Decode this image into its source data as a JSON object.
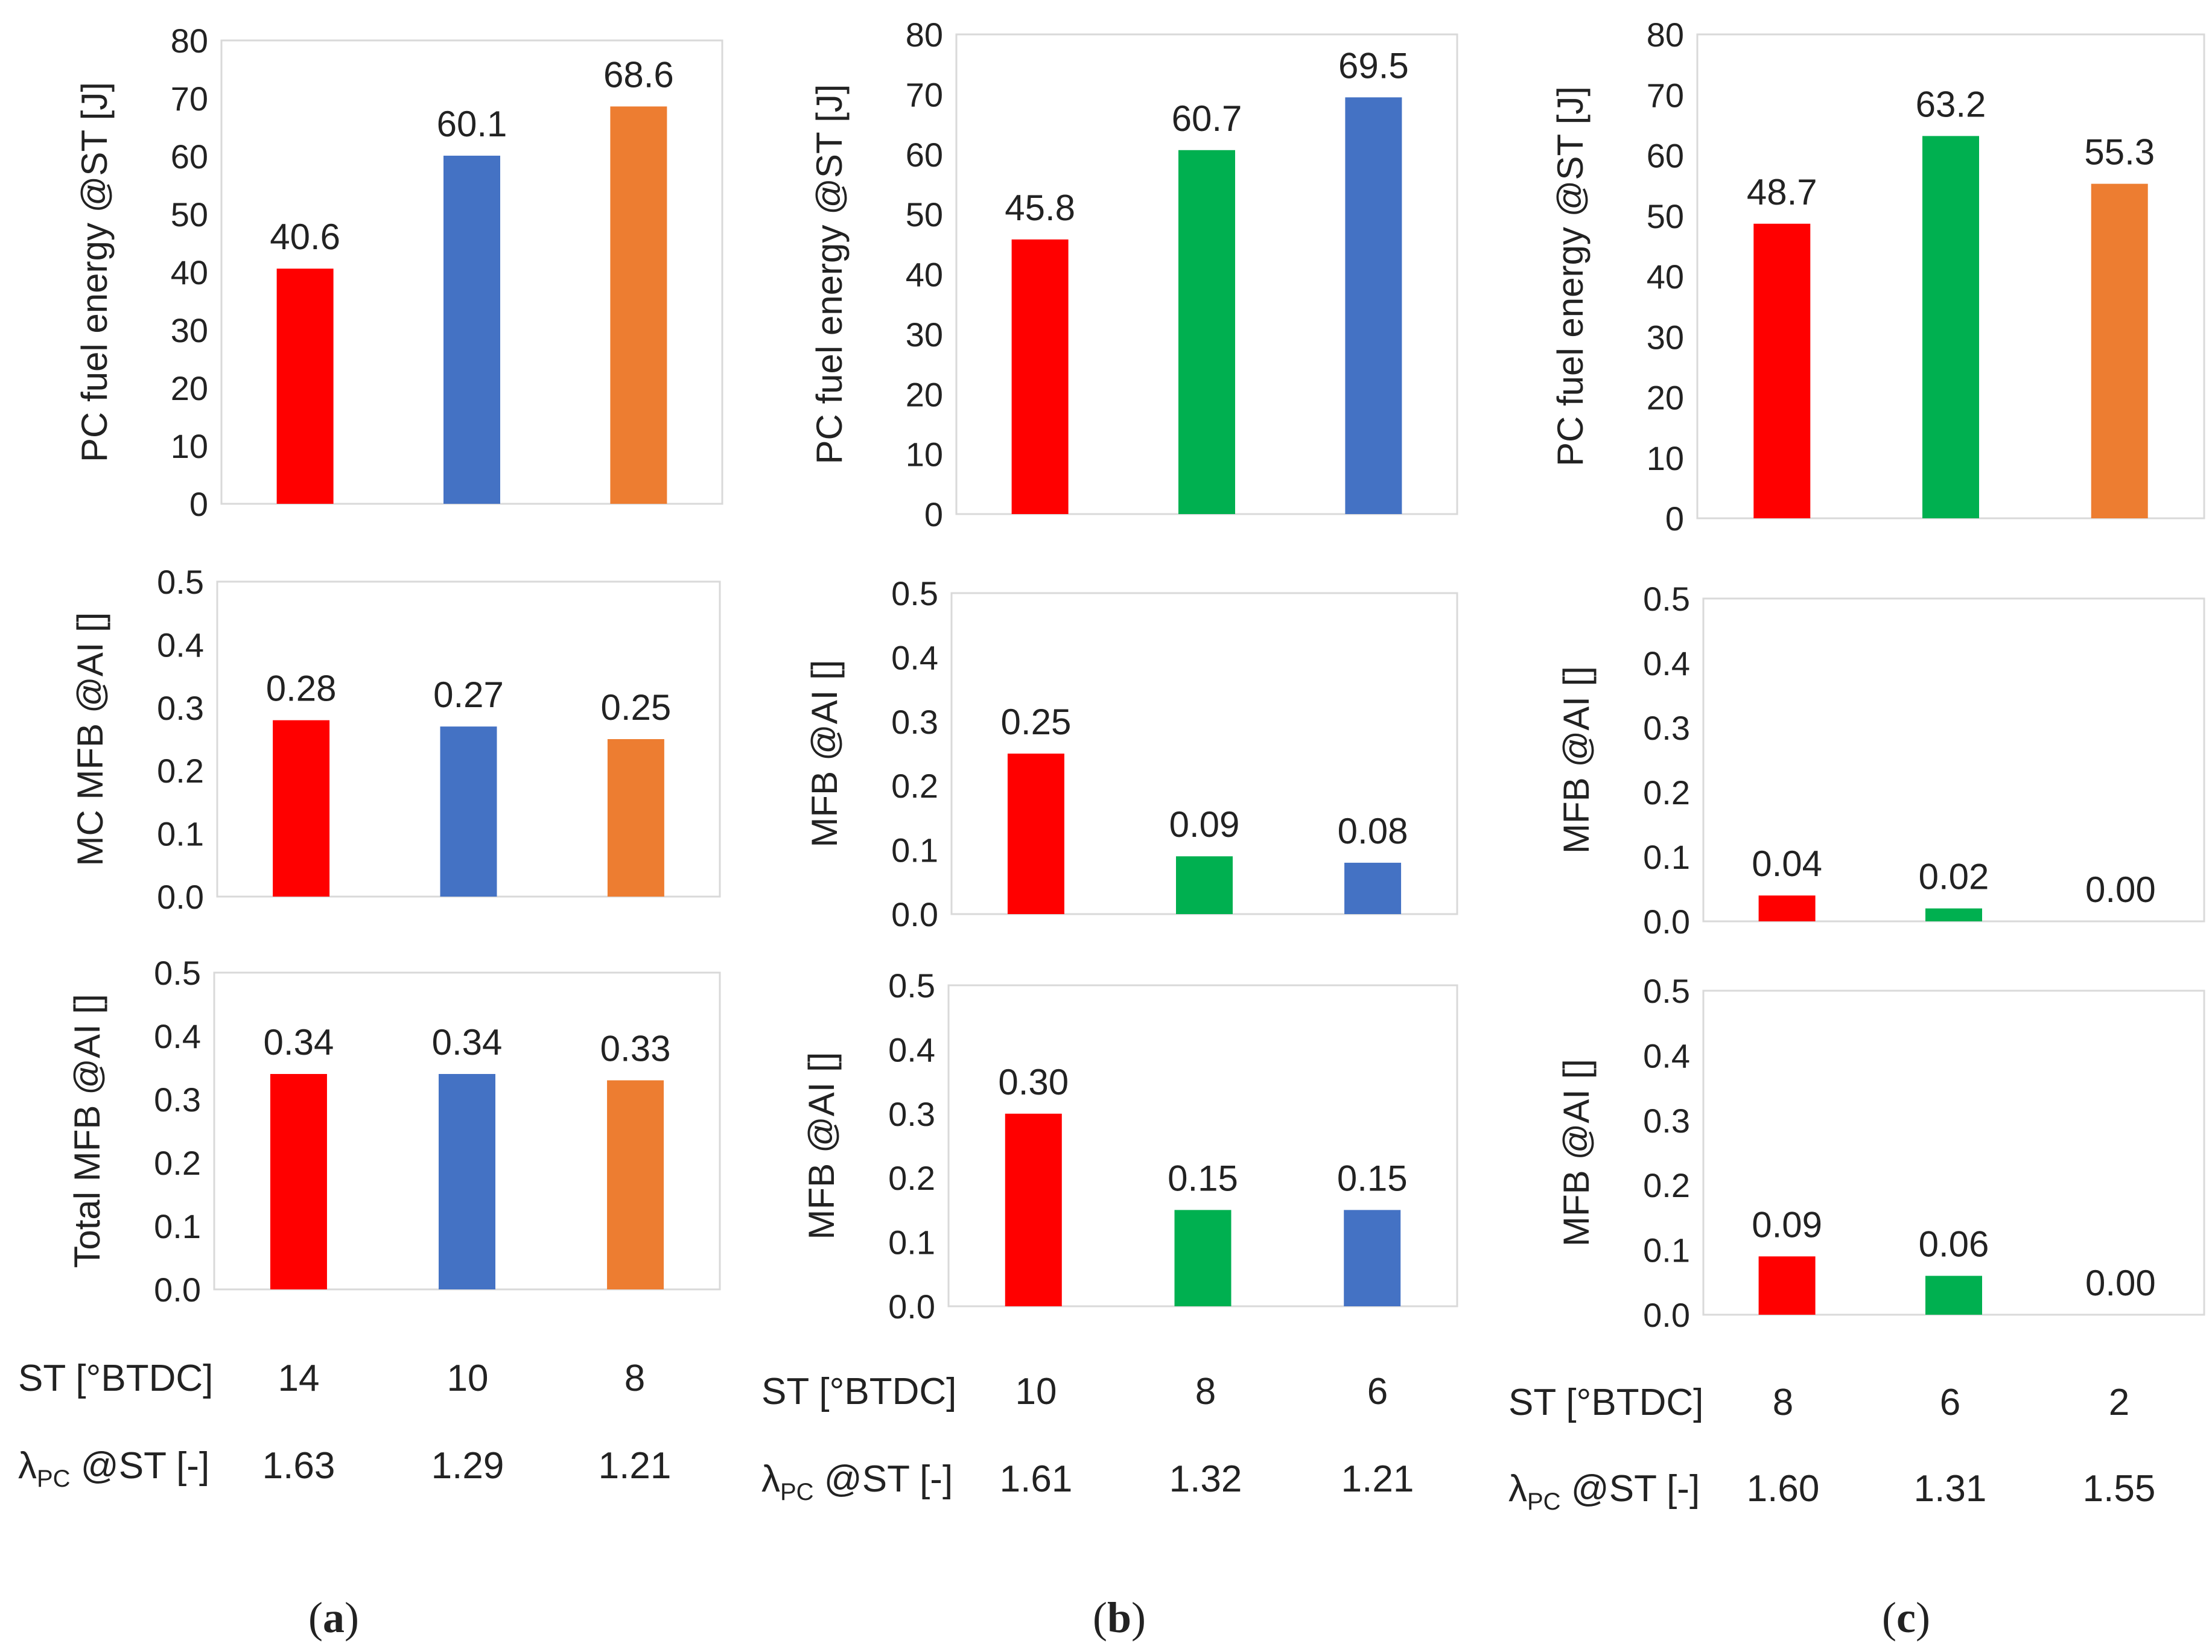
{
  "colors": {
    "red": "#ff0000",
    "blue": "#4472c4",
    "orange": "#ed7d31",
    "green": "#00b050",
    "frame": "#d9d9d9",
    "text": "#222222"
  },
  "chart_data": [
    {
      "id": "a-top",
      "type": "bar",
      "panel": "a",
      "ylabel": "PC fuel energy @ST [J]",
      "ylim": [
        0,
        80
      ],
      "ticks": [
        "0",
        "10",
        "20",
        "30",
        "40",
        "50",
        "60",
        "70",
        "80"
      ],
      "categories": [
        "14",
        "10",
        "8"
      ],
      "values": [
        40.6,
        60.1,
        68.6
      ],
      "labels": [
        "40.6",
        "60.1",
        "68.6"
      ],
      "colors": [
        "red",
        "blue",
        "orange"
      ]
    },
    {
      "id": "a-mid",
      "type": "bar",
      "panel": "a",
      "ylabel": "MC MFB @AI []",
      "ylim": [
        0,
        0.5
      ],
      "ticks": [
        "0.0",
        "0.1",
        "0.2",
        "0.3",
        "0.4",
        "0.5"
      ],
      "categories": [
        "14",
        "10",
        "8"
      ],
      "values": [
        0.28,
        0.27,
        0.25
      ],
      "labels": [
        "0.28",
        "0.27",
        "0.25"
      ],
      "colors": [
        "red",
        "blue",
        "orange"
      ]
    },
    {
      "id": "a-bot",
      "type": "bar",
      "panel": "a",
      "ylabel": "Total MFB @AI []",
      "ylim": [
        0,
        0.5
      ],
      "ticks": [
        "0.0",
        "0.1",
        "0.2",
        "0.3",
        "0.4",
        "0.5"
      ],
      "categories": [
        "14",
        "10",
        "8"
      ],
      "values": [
        0.34,
        0.34,
        0.33
      ],
      "labels": [
        "0.34",
        "0.34",
        "0.33"
      ],
      "colors": [
        "red",
        "blue",
        "orange"
      ]
    },
    {
      "id": "b-top",
      "type": "bar",
      "panel": "b",
      "ylabel": "PC fuel energy @ST [J]",
      "ylim": [
        0,
        80
      ],
      "ticks": [
        "0",
        "10",
        "20",
        "30",
        "40",
        "50",
        "60",
        "70",
        "80"
      ],
      "categories": [
        "10",
        "8",
        "6"
      ],
      "values": [
        45.8,
        60.7,
        69.5
      ],
      "labels": [
        "45.8",
        "60.7",
        "69.5"
      ],
      "colors": [
        "red",
        "green",
        "blue"
      ]
    },
    {
      "id": "b-mid",
      "type": "bar",
      "panel": "b",
      "ylabel": "MFB @AI []",
      "ylim": [
        0,
        0.5
      ],
      "ticks": [
        "0.0",
        "0.1",
        "0.2",
        "0.3",
        "0.4",
        "0.5"
      ],
      "categories": [
        "10",
        "8",
        "6"
      ],
      "values": [
        0.25,
        0.09,
        0.08
      ],
      "labels": [
        "0.25",
        "0.09",
        "0.08"
      ],
      "colors": [
        "red",
        "green",
        "blue"
      ]
    },
    {
      "id": "b-bot",
      "type": "bar",
      "panel": "b",
      "ylabel": "MFB @AI []",
      "ylim": [
        0,
        0.5
      ],
      "ticks": [
        "0.0",
        "0.1",
        "0.2",
        "0.3",
        "0.4",
        "0.5"
      ],
      "categories": [
        "10",
        "8",
        "6"
      ],
      "values": [
        0.3,
        0.15,
        0.15
      ],
      "labels": [
        "0.30",
        "0.15",
        "0.15"
      ],
      "colors": [
        "red",
        "green",
        "blue"
      ]
    },
    {
      "id": "c-top",
      "type": "bar",
      "panel": "c",
      "ylabel": "PC fuel energy @ST [J]",
      "ylim": [
        0,
        80
      ],
      "ticks": [
        "0",
        "10",
        "20",
        "30",
        "40",
        "50",
        "60",
        "70",
        "80"
      ],
      "categories": [
        "8",
        "6",
        "2"
      ],
      "values": [
        48.7,
        63.2,
        55.3
      ],
      "labels": [
        "48.7",
        "63.2",
        "55.3"
      ],
      "colors": [
        "red",
        "green",
        "orange"
      ]
    },
    {
      "id": "c-mid",
      "type": "bar",
      "panel": "c",
      "ylabel": "MFB @AI []",
      "ylim": [
        0,
        0.5
      ],
      "ticks": [
        "0.0",
        "0.1",
        "0.2",
        "0.3",
        "0.4",
        "0.5"
      ],
      "categories": [
        "8",
        "6",
        "2"
      ],
      "values": [
        0.04,
        0.02,
        0.0
      ],
      "labels": [
        "0.04",
        "0.02",
        "0.00"
      ],
      "colors": [
        "red",
        "green",
        "orange"
      ]
    },
    {
      "id": "c-bot",
      "type": "bar",
      "panel": "c",
      "ylabel": "MFB @AI []",
      "ylim": [
        0,
        0.5
      ],
      "ticks": [
        "0.0",
        "0.1",
        "0.2",
        "0.3",
        "0.4",
        "0.5"
      ],
      "categories": [
        "8",
        "6",
        "2"
      ],
      "values": [
        0.09,
        0.06,
        0.0
      ],
      "labels": [
        "0.09",
        "0.06",
        "0.00"
      ],
      "colors": [
        "red",
        "green",
        "orange"
      ]
    }
  ],
  "tables": [
    {
      "panel": "a",
      "st_label": "ST [°BTDC]",
      "lambda_main": "λ",
      "lambda_sub": "PC",
      "lambda_rest": " @ST [-]",
      "st_values": [
        "14",
        "10",
        "8"
      ],
      "lambda_values": [
        "1.63",
        "1.29",
        "1.21"
      ]
    },
    {
      "panel": "b",
      "st_label": "ST [°BTDC]",
      "lambda_main": "λ",
      "lambda_sub": "PC",
      "lambda_rest": " @ST [-]",
      "st_values": [
        "10",
        "8",
        "6"
      ],
      "lambda_values": [
        "1.61",
        "1.32",
        "1.21"
      ]
    },
    {
      "panel": "c",
      "st_label": "ST [°BTDC]",
      "lambda_main": "λ",
      "lambda_sub": "PC",
      "lambda_rest": " @ST [-]",
      "st_values": [
        "8",
        "6",
        "2"
      ],
      "lambda_values": [
        "1.60",
        "1.31",
        "1.55"
      ]
    }
  ],
  "panel_tags": [
    {
      "open": "(",
      "letter": "a",
      "close": ")"
    },
    {
      "open": "(",
      "letter": "b",
      "close": ")"
    },
    {
      "open": "(",
      "letter": "c",
      "close": ")"
    }
  ]
}
